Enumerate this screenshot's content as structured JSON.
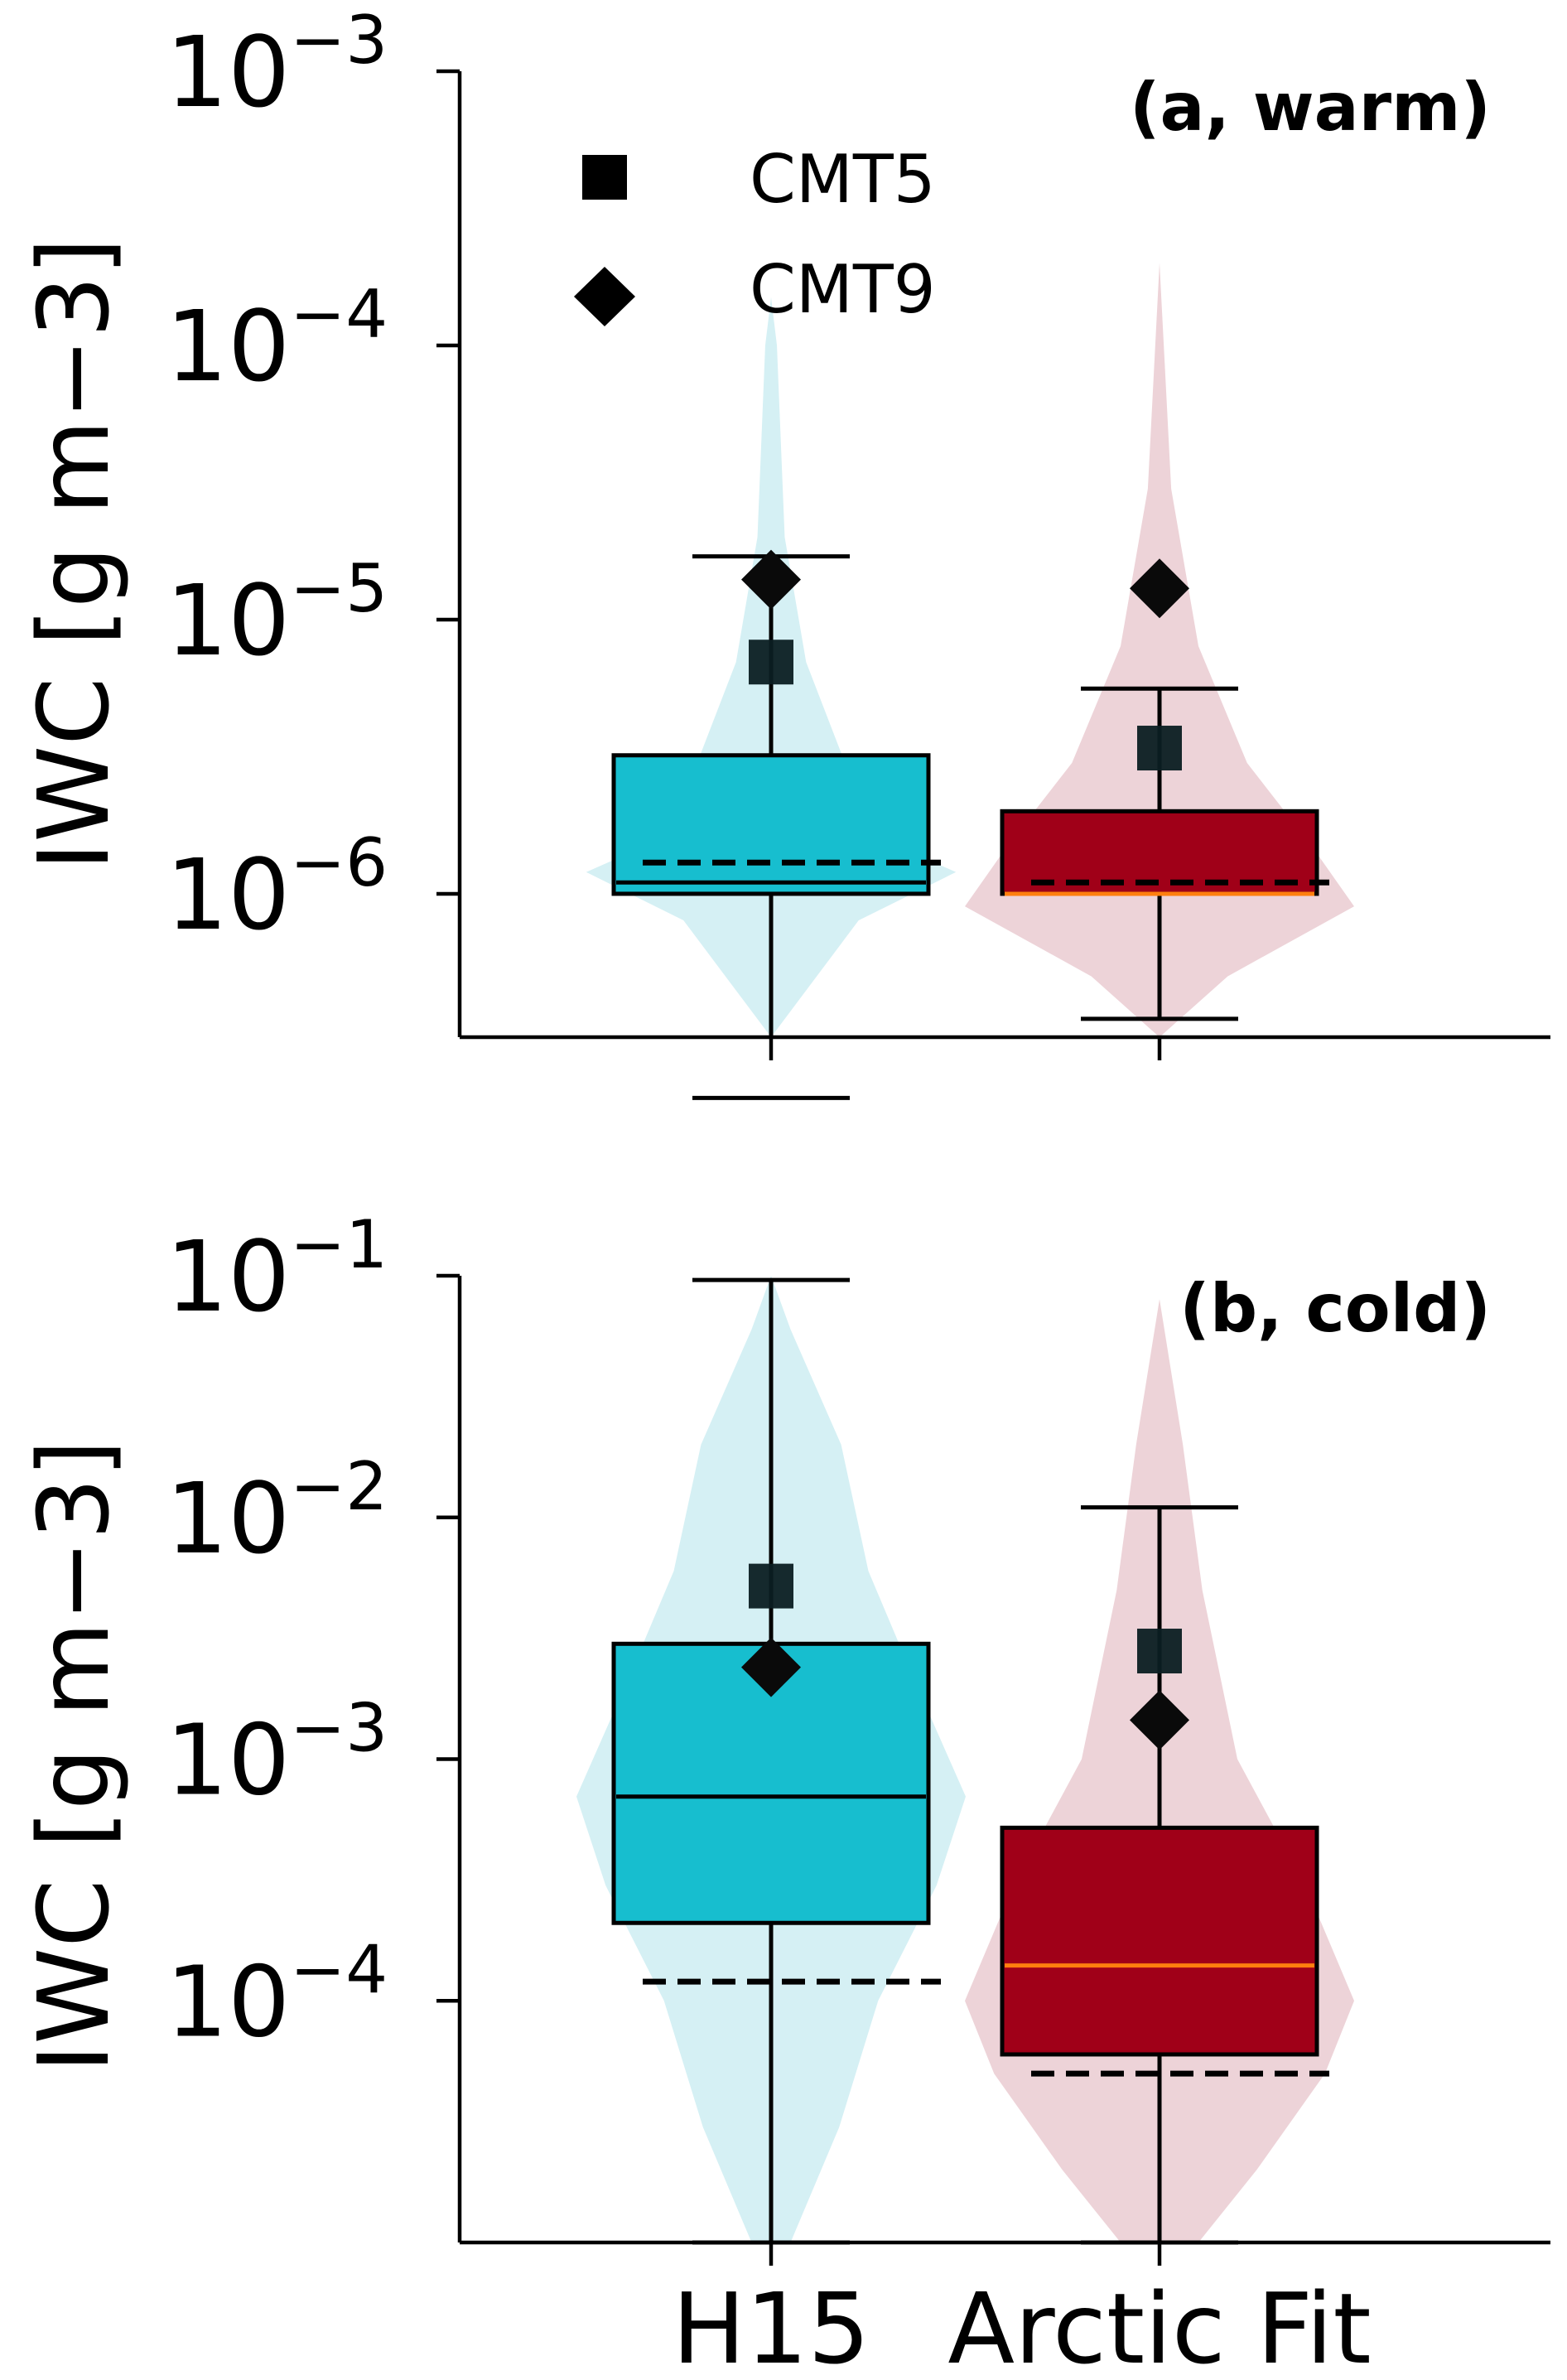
{
  "chart_data": [
    {
      "type": "box",
      "panel_label": "(a, warm)",
      "ylabel": "IWC [g m−3]",
      "yscale": "log",
      "ylim": [
        3e-07,
        0.001
      ],
      "yticks": [
        {
          "value": 1e-06,
          "base": "10",
          "exp": "−6"
        },
        {
          "value": 1e-05,
          "base": "10",
          "exp": "−5"
        },
        {
          "value": 0.0001,
          "base": "10",
          "exp": "−4"
        },
        {
          "value": 0.001,
          "base": "10",
          "exp": "−3"
        }
      ],
      "categories": [
        "H15",
        "Arctic Fit"
      ],
      "legend": [
        {
          "label": "CMT5",
          "marker": "square"
        },
        {
          "label": "CMT9",
          "marker": "diamond"
        }
      ],
      "series": [
        {
          "category": "H15",
          "box_color": "#17becf",
          "violin_color": "#d5f0f4",
          "median_color": "#000000",
          "whisker_low": 1.8e-07,
          "q1": 1e-06,
          "median": 1.1e-06,
          "q3": 3.2e-06,
          "whisker_high": 1.7e-05,
          "dashed": 1.3e-06,
          "cmt5": 7e-06,
          "cmt9": 1.4e-05,
          "violin": [
            [
              3e-07,
              0.0
            ],
            [
              8e-07,
              0.45
            ],
            [
              1.2e-06,
              0.95
            ],
            [
              1.6e-06,
              0.55
            ],
            [
              3e-06,
              0.38
            ],
            [
              7e-06,
              0.18
            ],
            [
              2e-05,
              0.07
            ],
            [
              0.0001,
              0.03
            ],
            [
              0.00015,
              0.0
            ]
          ]
        },
        {
          "category": "Arctic Fit",
          "box_color": "#a00018",
          "violin_color": "#edd3d8",
          "median_color": "#ff7f0e",
          "whisker_low": 3.5e-07,
          "q1": 1e-06,
          "median": 1e-06,
          "q3": 2e-06,
          "whisker_high": 5.6e-06,
          "dashed": 1.1e-06,
          "cmt5": 3.4e-06,
          "cmt9": 1.3e-05,
          "violin": [
            [
              3e-07,
              0.0
            ],
            [
              5e-07,
              0.35
            ],
            [
              9e-07,
              1.0
            ],
            [
              1.5e-06,
              0.78
            ],
            [
              3e-06,
              0.45
            ],
            [
              8e-06,
              0.2
            ],
            [
              3e-05,
              0.06
            ],
            [
              0.0002,
              0.0
            ]
          ]
        }
      ]
    },
    {
      "type": "box",
      "panel_label": "(b, cold)",
      "ylabel": "IWC [g m−3]",
      "yscale": "log",
      "ylim": [
        1e-05,
        0.1
      ],
      "yticks": [
        {
          "value": 0.0001,
          "base": "10",
          "exp": "−4"
        },
        {
          "value": 0.001,
          "base": "10",
          "exp": "−3"
        },
        {
          "value": 0.01,
          "base": "10",
          "exp": "−2"
        },
        {
          "value": 0.1,
          "base": "10",
          "exp": "−1"
        }
      ],
      "categories": [
        "H15",
        "Arctic Fit"
      ],
      "series": [
        {
          "category": "H15",
          "box_color": "#17becf",
          "violin_color": "#d5f0f4",
          "median_color": "#000000",
          "whisker_low": 1e-05,
          "q1": 0.00021,
          "median": 0.0007,
          "q3": 0.003,
          "whisker_high": 0.096,
          "dashed": 0.00012,
          "cmt5": 0.0052,
          "cmt9": 0.0024,
          "violin": [
            [
              1e-05,
              0.1
            ],
            [
              3e-05,
              0.35
            ],
            [
              0.0001,
              0.55
            ],
            [
              0.0003,
              0.85
            ],
            [
              0.0007,
              1.0
            ],
            [
              0.002,
              0.75
            ],
            [
              0.006,
              0.5
            ],
            [
              0.02,
              0.36
            ],
            [
              0.06,
              0.1
            ],
            [
              0.1,
              0.0
            ]
          ]
        },
        {
          "category": "Arctic Fit",
          "box_color": "#a00018",
          "violin_color": "#edd3d8",
          "median_color": "#ff7f0e",
          "whisker_low": 1e-05,
          "q1": 6e-05,
          "median": 0.00014,
          "q3": 0.00052,
          "whisker_high": 0.011,
          "dashed": 5e-05,
          "cmt5": 0.0028,
          "cmt9": 0.00145,
          "violin": [
            [
              1e-05,
              0.2
            ],
            [
              2e-05,
              0.5
            ],
            [
              5e-05,
              0.85
            ],
            [
              0.0001,
              1.0
            ],
            [
              0.0003,
              0.75
            ],
            [
              0.001,
              0.4
            ],
            [
              0.005,
              0.22
            ],
            [
              0.02,
              0.12
            ],
            [
              0.08,
              0.0
            ]
          ]
        }
      ]
    }
  ]
}
